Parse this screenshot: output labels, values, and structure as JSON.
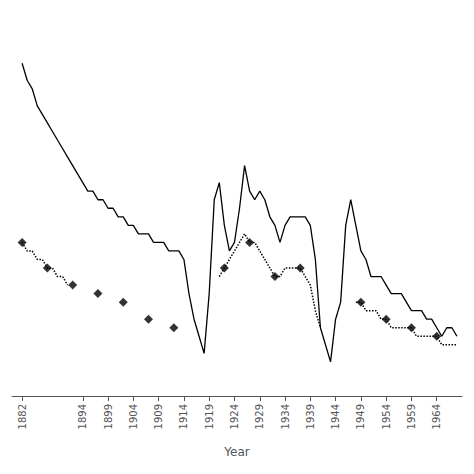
{
  "chart_data": {
    "type": "line",
    "xlabel": "Year",
    "xlim": [
      1880,
      1969
    ],
    "xticks": [
      1882,
      1894,
      1899,
      1904,
      1909,
      1914,
      1919,
      1924,
      1929,
      1934,
      1939,
      1944,
      1949,
      1954,
      1959,
      1964
    ],
    "ylim": [
      10,
      55
    ],
    "tick_labels": "x",
    "grid": false,
    "series": [
      {
        "type": "line",
        "line_style": "solid",
        "color": "#000000",
        "x": [
          1882,
          1883,
          1884,
          1885,
          1886,
          1887,
          1888,
          1889,
          1890,
          1891,
          1892,
          1893,
          1894,
          1895,
          1896,
          1897,
          1898,
          1899,
          1900,
          1901,
          1902,
          1903,
          1904,
          1905,
          1906,
          1907,
          1908,
          1909,
          1910,
          1911,
          1912,
          1913,
          1914,
          1915,
          1916,
          1917,
          1918,
          1919,
          1920,
          1921,
          1922,
          1923,
          1924,
          1925,
          1926,
          1927,
          1928,
          1929,
          1930,
          1931,
          1932,
          1933,
          1934,
          1935,
          1936,
          1937,
          1938,
          1939,
          1940,
          1941,
          1942,
          1943,
          1944,
          1945,
          1946,
          1947,
          1948,
          1949,
          1950,
          1951,
          1952,
          1953,
          1954,
          1955,
          1956,
          1957,
          1958,
          1959,
          1960,
          1961,
          1962,
          1963,
          1964,
          1965,
          1966,
          1967,
          1968
        ],
        "values": [
          49,
          47,
          46,
          44,
          43,
          42,
          41,
          40,
          39,
          38,
          37,
          36,
          35,
          34,
          34,
          33,
          33,
          32,
          32,
          31,
          31,
          30,
          30,
          29,
          29,
          29,
          28,
          28,
          28,
          27,
          27,
          27,
          26,
          22,
          19,
          17,
          15,
          22,
          33,
          35,
          30,
          27,
          28,
          32,
          37,
          34,
          33,
          34,
          33,
          31,
          30,
          28,
          30,
          31,
          31,
          31,
          31,
          30,
          26,
          18,
          16,
          14,
          19,
          21,
          30,
          33,
          30,
          27,
          26,
          24,
          24,
          24,
          23,
          22,
          22,
          22,
          21,
          20,
          20,
          20,
          19,
          19,
          18,
          17,
          18,
          18,
          17
        ]
      },
      {
        "type": "line",
        "line_style": "dotted",
        "color": "#000000",
        "x": [
          1882,
          1883,
          1884,
          1885,
          1886,
          1887,
          1888,
          1889,
          1890,
          1891
        ],
        "values": [
          28,
          27,
          27,
          26,
          26,
          25,
          25,
          24,
          24,
          23
        ]
      },
      {
        "type": "line",
        "line_style": "dotted",
        "color": "#000000",
        "x": [
          1921,
          1922,
          1923,
          1924,
          1925,
          1926,
          1927,
          1928,
          1929,
          1930,
          1931,
          1932,
          1933,
          1934,
          1935,
          1936,
          1937,
          1938,
          1939,
          1940,
          1941
        ],
        "values": [
          24,
          25,
          26,
          27,
          28,
          29,
          28,
          28,
          27,
          26,
          25,
          24,
          24,
          25,
          25,
          25,
          25,
          24,
          23,
          20,
          18
        ]
      },
      {
        "type": "line",
        "line_style": "dotted",
        "color": "#000000",
        "x": [
          1948,
          1949,
          1950,
          1951,
          1952,
          1953,
          1954,
          1955,
          1956,
          1957,
          1958,
          1959,
          1960,
          1961,
          1962,
          1963,
          1964,
          1965,
          1966,
          1967,
          1968
        ],
        "values": [
          21,
          21,
          20,
          20,
          20,
          19,
          19,
          18,
          18,
          18,
          18,
          18,
          17,
          17,
          17,
          17,
          17,
          16,
          16,
          16,
          16
        ]
      },
      {
        "type": "scatter",
        "marker": "diamond",
        "color": "#000000",
        "x": [
          1882,
          1887,
          1892,
          1897,
          1902,
          1907,
          1912,
          1922,
          1927,
          1932,
          1937,
          1949,
          1954,
          1959,
          1964
        ],
        "values": [
          28,
          25,
          23,
          22,
          21,
          19,
          18,
          25,
          28,
          24,
          25,
          21,
          19,
          18,
          17
        ]
      }
    ]
  }
}
